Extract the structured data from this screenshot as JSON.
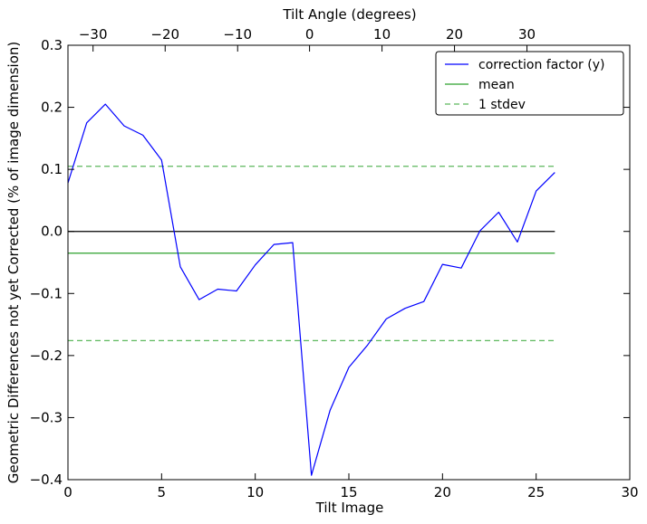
{
  "chart_data": {
    "type": "line",
    "xlabel": "Tilt Image",
    "ylabel": "Geometric Differences not yet Corrected (% of image dimension)",
    "top_xlabel": "Tilt Angle (degrees)",
    "xlim": [
      0,
      30
    ],
    "ylim": [
      -0.4,
      0.3
    ],
    "xticks": [
      0,
      5,
      10,
      15,
      20,
      25,
      30
    ],
    "xtick_labels": [
      "0",
      "5",
      "10",
      "15",
      "20",
      "25",
      "30"
    ],
    "yticks": [
      -0.4,
      -0.3,
      -0.2,
      -0.1,
      0.0,
      0.1,
      0.2,
      0.3
    ],
    "ytick_labels": [
      "−0.4",
      "−0.3",
      "−0.2",
      "−0.1",
      "0.0",
      "0.1",
      "0.2",
      "0.3"
    ],
    "top_ticks_at_tilt_image": [
      1.34,
      5.19,
      9.06,
      12.9,
      16.77,
      20.64,
      24.51
    ],
    "top_tick_labels": [
      "−30",
      "−20",
      "−10",
      "0",
      "10",
      "20",
      "30"
    ],
    "grid": false,
    "legend_position": "top-right",
    "series": [
      {
        "name": "correction factor (y)",
        "color": "#0000ff",
        "style": "solid",
        "x": [
          0,
          1,
          2,
          3,
          4,
          5,
          6,
          7,
          8,
          9,
          10,
          11,
          12,
          13,
          14,
          15,
          16,
          17,
          18,
          19,
          20,
          21,
          22,
          23,
          24,
          25,
          26
        ],
        "y": [
          0.078,
          0.175,
          0.205,
          0.17,
          0.155,
          0.115,
          -0.057,
          -0.11,
          -0.093,
          -0.096,
          -0.054,
          -0.021,
          -0.018,
          -0.393,
          -0.288,
          -0.219,
          -0.183,
          -0.141,
          -0.124,
          -0.113,
          -0.053,
          -0.059,
          0.001,
          0.031,
          -0.017,
          0.065,
          0.095
        ]
      },
      {
        "name": "mean",
        "color": "#2ca02c",
        "style": "solid",
        "x": [
          0,
          26
        ],
        "y": [
          -0.035,
          -0.035
        ]
      },
      {
        "name": "1 stdev",
        "color": "#5cb85c",
        "style": "dashed",
        "x": [
          0,
          26
        ],
        "y": [
          0.105,
          0.105
        ],
        "y_lower": [
          -0.176,
          -0.176
        ]
      }
    ],
    "zero_line": {
      "x": [
        0,
        26
      ],
      "y": 0.0,
      "color": "#000000"
    }
  }
}
